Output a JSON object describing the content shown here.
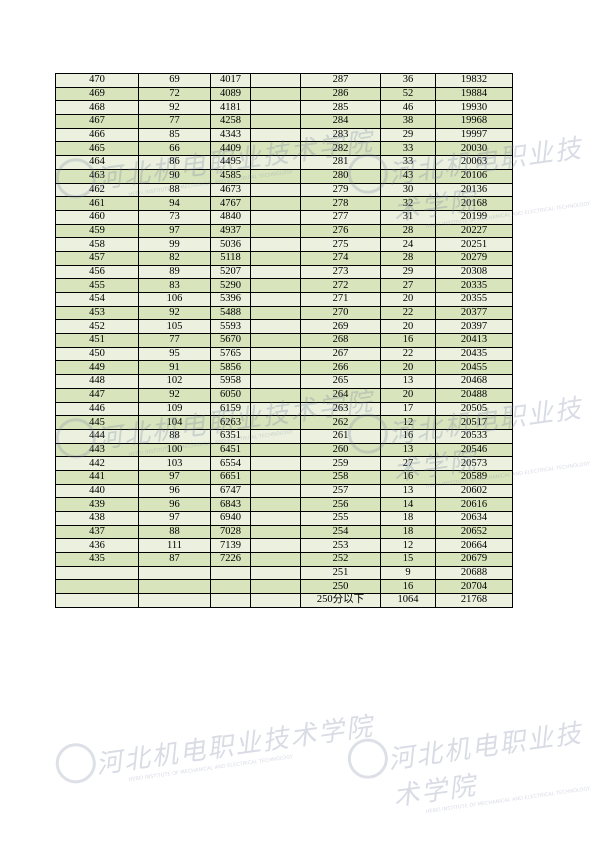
{
  "watermark": {
    "cn": "河北机电职业技术学院",
    "en": "HEBEI INSTITUTE OF MECHANICAL AND ELECTRICAL TECHNOLOGY"
  },
  "table": {
    "rows": [
      {
        "left": [
          470,
          69,
          4017
        ],
        "right": [
          287,
          36,
          19832
        ]
      },
      {
        "left": [
          469,
          72,
          4089
        ],
        "right": [
          286,
          52,
          19884
        ]
      },
      {
        "left": [
          468,
          92,
          4181
        ],
        "right": [
          285,
          46,
          19930
        ]
      },
      {
        "left": [
          467,
          77,
          4258
        ],
        "right": [
          284,
          38,
          19968
        ]
      },
      {
        "left": [
          466,
          85,
          4343
        ],
        "right": [
          283,
          29,
          19997
        ]
      },
      {
        "left": [
          465,
          66,
          4409
        ],
        "right": [
          282,
          33,
          20030
        ]
      },
      {
        "left": [
          464,
          86,
          4495
        ],
        "right": [
          281,
          33,
          20063
        ]
      },
      {
        "left": [
          463,
          90,
          4585
        ],
        "right": [
          280,
          43,
          20106
        ]
      },
      {
        "left": [
          462,
          88,
          4673
        ],
        "right": [
          279,
          30,
          20136
        ]
      },
      {
        "left": [
          461,
          94,
          4767
        ],
        "right": [
          278,
          32,
          20168
        ]
      },
      {
        "left": [
          460,
          73,
          4840
        ],
        "right": [
          277,
          31,
          20199
        ]
      },
      {
        "left": [
          459,
          97,
          4937
        ],
        "right": [
          276,
          28,
          20227
        ]
      },
      {
        "left": [
          458,
          99,
          5036
        ],
        "right": [
          275,
          24,
          20251
        ]
      },
      {
        "left": [
          457,
          82,
          5118
        ],
        "right": [
          274,
          28,
          20279
        ]
      },
      {
        "left": [
          456,
          89,
          5207
        ],
        "right": [
          273,
          29,
          20308
        ]
      },
      {
        "left": [
          455,
          83,
          5290
        ],
        "right": [
          272,
          27,
          20335
        ]
      },
      {
        "left": [
          454,
          106,
          5396
        ],
        "right": [
          271,
          20,
          20355
        ]
      },
      {
        "left": [
          453,
          92,
          5488
        ],
        "right": [
          270,
          22,
          20377
        ]
      },
      {
        "left": [
          452,
          105,
          5593
        ],
        "right": [
          269,
          20,
          20397
        ]
      },
      {
        "left": [
          451,
          77,
          5670
        ],
        "right": [
          268,
          16,
          20413
        ]
      },
      {
        "left": [
          450,
          95,
          5765
        ],
        "right": [
          267,
          22,
          20435
        ]
      },
      {
        "left": [
          449,
          91,
          5856
        ],
        "right": [
          266,
          20,
          20455
        ]
      },
      {
        "left": [
          448,
          102,
          5958
        ],
        "right": [
          265,
          13,
          20468
        ]
      },
      {
        "left": [
          447,
          92,
          6050
        ],
        "right": [
          264,
          20,
          20488
        ]
      },
      {
        "left": [
          446,
          109,
          6159
        ],
        "right": [
          263,
          17,
          20505
        ]
      },
      {
        "left": [
          445,
          104,
          6263
        ],
        "right": [
          262,
          12,
          20517
        ]
      },
      {
        "left": [
          444,
          88,
          6351
        ],
        "right": [
          261,
          16,
          20533
        ]
      },
      {
        "left": [
          443,
          100,
          6451
        ],
        "right": [
          260,
          13,
          20546
        ]
      },
      {
        "left": [
          442,
          103,
          6554
        ],
        "right": [
          259,
          27,
          20573
        ]
      },
      {
        "left": [
          441,
          97,
          6651
        ],
        "right": [
          258,
          16,
          20589
        ]
      },
      {
        "left": [
          440,
          96,
          6747
        ],
        "right": [
          257,
          13,
          20602
        ]
      },
      {
        "left": [
          439,
          96,
          6843
        ],
        "right": [
          256,
          14,
          20616
        ]
      },
      {
        "left": [
          438,
          97,
          6940
        ],
        "right": [
          255,
          18,
          20634
        ]
      },
      {
        "left": [
          437,
          88,
          7028
        ],
        "right": [
          254,
          18,
          20652
        ]
      },
      {
        "left": [
          436,
          111,
          7139
        ],
        "right": [
          253,
          12,
          20664
        ]
      },
      {
        "left": [
          435,
          87,
          7226
        ],
        "right": [
          252,
          15,
          20679
        ]
      },
      {
        "right": [
          251,
          9,
          20688
        ]
      },
      {
        "right": [
          250,
          16,
          20704
        ]
      },
      {
        "right": [
          "250分以下",
          1064,
          21768
        ]
      }
    ]
  }
}
